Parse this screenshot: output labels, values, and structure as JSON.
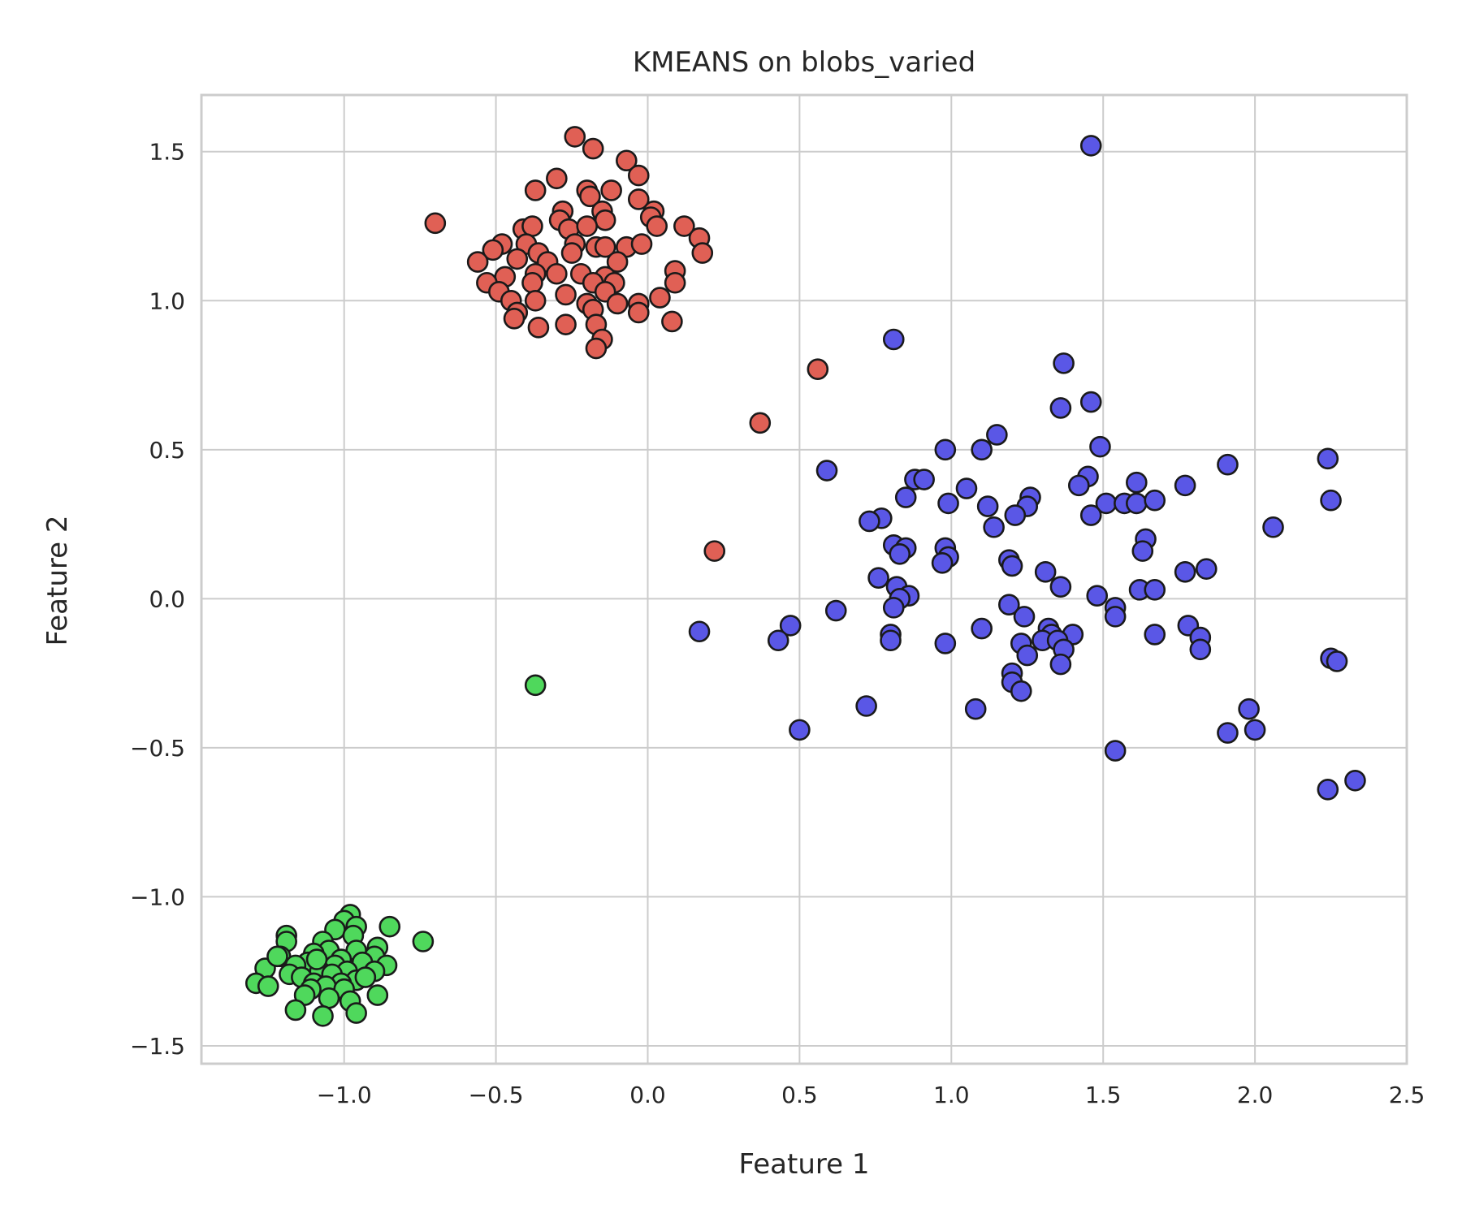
{
  "chart_data": {
    "type": "scatter",
    "title": "KMEANS on blobs_varied",
    "xlabel": "Feature 1",
    "ylabel": "Feature 2",
    "xlim": [
      -1.47,
      2.5
    ],
    "ylim": [
      -1.56,
      1.69
    ],
    "xticks": [
      -1.0,
      -0.5,
      0.0,
      0.5,
      1.0,
      1.5,
      2.0,
      2.5
    ],
    "xtick_labels": [
      "−1.0",
      "−0.5",
      "0.0",
      "0.5",
      "1.0",
      "1.5",
      "2.0",
      "2.5"
    ],
    "yticks": [
      -1.5,
      -1.0,
      -0.5,
      0.0,
      0.5,
      1.0,
      1.5
    ],
    "ytick_labels": [
      "−1.5",
      "−1.0",
      "−0.5",
      "0.0",
      "0.5",
      "1.0",
      "1.5"
    ],
    "grid": true,
    "series": [
      {
        "color": "#e06055",
        "points": [
          [
            -0.7,
            1.26
          ],
          [
            -0.24,
            1.55
          ],
          [
            -0.18,
            1.51
          ],
          [
            -0.07,
            1.47
          ],
          [
            -0.03,
            1.42
          ],
          [
            -0.3,
            1.41
          ],
          [
            -0.37,
            1.37
          ],
          [
            -0.2,
            1.37
          ],
          [
            -0.12,
            1.37
          ],
          [
            -0.19,
            1.35
          ],
          [
            -0.03,
            1.34
          ],
          [
            -0.28,
            1.3
          ],
          [
            -0.15,
            1.3
          ],
          [
            0.02,
            1.3
          ],
          [
            -0.29,
            1.27
          ],
          [
            -0.14,
            1.27
          ],
          [
            0.01,
            1.28
          ],
          [
            -0.41,
            1.24
          ],
          [
            -0.38,
            1.25
          ],
          [
            -0.26,
            1.24
          ],
          [
            -0.2,
            1.25
          ],
          [
            0.03,
            1.25
          ],
          [
            0.12,
            1.25
          ],
          [
            -0.48,
            1.19
          ],
          [
            -0.4,
            1.19
          ],
          [
            -0.24,
            1.19
          ],
          [
            -0.17,
            1.18
          ],
          [
            -0.14,
            1.18
          ],
          [
            -0.07,
            1.18
          ],
          [
            -0.02,
            1.19
          ],
          [
            0.17,
            1.21
          ],
          [
            -0.51,
            1.17
          ],
          [
            -0.36,
            1.16
          ],
          [
            -0.25,
            1.16
          ],
          [
            0.18,
            1.16
          ],
          [
            -0.56,
            1.13
          ],
          [
            -0.43,
            1.14
          ],
          [
            -0.33,
            1.13
          ],
          [
            -0.1,
            1.13
          ],
          [
            -0.47,
            1.08
          ],
          [
            -0.37,
            1.09
          ],
          [
            -0.3,
            1.09
          ],
          [
            -0.22,
            1.09
          ],
          [
            -0.14,
            1.08
          ],
          [
            0.09,
            1.1
          ],
          [
            -0.53,
            1.06
          ],
          [
            -0.38,
            1.06
          ],
          [
            -0.18,
            1.06
          ],
          [
            -0.11,
            1.06
          ],
          [
            0.09,
            1.06
          ],
          [
            -0.49,
            1.03
          ],
          [
            -0.27,
            1.02
          ],
          [
            -0.14,
            1.03
          ],
          [
            0.04,
            1.01
          ],
          [
            -0.45,
            1.0
          ],
          [
            -0.37,
            1.0
          ],
          [
            -0.2,
            0.99
          ],
          [
            -0.1,
            0.99
          ],
          [
            -0.03,
            0.99
          ],
          [
            -0.43,
            0.96
          ],
          [
            -0.18,
            0.97
          ],
          [
            -0.03,
            0.96
          ],
          [
            -0.44,
            0.94
          ],
          [
            -0.36,
            0.91
          ],
          [
            -0.27,
            0.92
          ],
          [
            -0.17,
            0.92
          ],
          [
            0.08,
            0.93
          ],
          [
            -0.15,
            0.87
          ],
          [
            -0.17,
            0.84
          ],
          [
            0.56,
            0.77
          ],
          [
            0.37,
            0.59
          ],
          [
            0.22,
            0.16
          ]
        ]
      },
      {
        "color": "#5a57e6",
        "points": [
          [
            1.46,
            1.52
          ],
          [
            0.81,
            0.87
          ],
          [
            1.37,
            0.79
          ],
          [
            1.46,
            0.66
          ],
          [
            1.36,
            0.64
          ],
          [
            1.15,
            0.55
          ],
          [
            1.49,
            0.51
          ],
          [
            0.98,
            0.5
          ],
          [
            1.1,
            0.5
          ],
          [
            0.59,
            0.43
          ],
          [
            1.91,
            0.45
          ],
          [
            2.24,
            0.47
          ],
          [
            0.88,
            0.4
          ],
          [
            0.91,
            0.4
          ],
          [
            1.45,
            0.41
          ],
          [
            1.05,
            0.37
          ],
          [
            1.42,
            0.38
          ],
          [
            1.61,
            0.39
          ],
          [
            1.77,
            0.38
          ],
          [
            0.85,
            0.34
          ],
          [
            1.26,
            0.34
          ],
          [
            0.99,
            0.32
          ],
          [
            1.51,
            0.32
          ],
          [
            1.57,
            0.32
          ],
          [
            1.61,
            0.32
          ],
          [
            1.67,
            0.33
          ],
          [
            2.25,
            0.33
          ],
          [
            1.12,
            0.31
          ],
          [
            1.25,
            0.31
          ],
          [
            1.46,
            0.28
          ],
          [
            0.77,
            0.27
          ],
          [
            1.21,
            0.28
          ],
          [
            0.73,
            0.26
          ],
          [
            1.14,
            0.24
          ],
          [
            2.06,
            0.24
          ],
          [
            1.64,
            0.2
          ],
          [
            0.81,
            0.18
          ],
          [
            0.85,
            0.17
          ],
          [
            0.98,
            0.17
          ],
          [
            1.63,
            0.16
          ],
          [
            0.83,
            0.15
          ],
          [
            0.99,
            0.14
          ],
          [
            1.19,
            0.13
          ],
          [
            0.97,
            0.12
          ],
          [
            1.2,
            0.11
          ],
          [
            1.31,
            0.09
          ],
          [
            1.77,
            0.09
          ],
          [
            1.84,
            0.1
          ],
          [
            0.76,
            0.07
          ],
          [
            0.82,
            0.04
          ],
          [
            1.36,
            0.04
          ],
          [
            1.62,
            0.03
          ],
          [
            1.67,
            0.03
          ],
          [
            0.86,
            0.01
          ],
          [
            1.48,
            0.01
          ],
          [
            0.83,
            0.0
          ],
          [
            1.19,
            -0.02
          ],
          [
            1.54,
            -0.03
          ],
          [
            0.81,
            -0.03
          ],
          [
            0.62,
            -0.04
          ],
          [
            1.24,
            -0.06
          ],
          [
            1.54,
            -0.06
          ],
          [
            0.47,
            -0.09
          ],
          [
            1.1,
            -0.1
          ],
          [
            1.32,
            -0.1
          ],
          [
            1.78,
            -0.09
          ],
          [
            0.17,
            -0.11
          ],
          [
            1.33,
            -0.12
          ],
          [
            1.4,
            -0.12
          ],
          [
            1.67,
            -0.12
          ],
          [
            0.8,
            -0.12
          ],
          [
            1.3,
            -0.14
          ],
          [
            0.8,
            -0.14
          ],
          [
            0.43,
            -0.14
          ],
          [
            1.82,
            -0.13
          ],
          [
            1.35,
            -0.14
          ],
          [
            1.23,
            -0.15
          ],
          [
            0.98,
            -0.15
          ],
          [
            1.37,
            -0.17
          ],
          [
            1.82,
            -0.17
          ],
          [
            1.25,
            -0.19
          ],
          [
            2.25,
            -0.2
          ],
          [
            2.27,
            -0.21
          ],
          [
            1.36,
            -0.22
          ],
          [
            1.2,
            -0.25
          ],
          [
            1.2,
            -0.28
          ],
          [
            1.23,
            -0.31
          ],
          [
            0.72,
            -0.36
          ],
          [
            1.08,
            -0.37
          ],
          [
            1.98,
            -0.37
          ],
          [
            0.5,
            -0.44
          ],
          [
            1.91,
            -0.45
          ],
          [
            2.0,
            -0.44
          ],
          [
            1.54,
            -0.51
          ],
          [
            2.33,
            -0.61
          ],
          [
            2.24,
            -0.64
          ]
        ]
      },
      {
        "color": "#4fd85c",
        "points": [
          [
            -0.37,
            -0.29
          ],
          [
            -0.74,
            -1.15
          ],
          [
            -0.85,
            -1.1
          ],
          [
            -0.98,
            -1.06
          ],
          [
            -1.0,
            -1.08
          ],
          [
            -0.96,
            -1.1
          ],
          [
            -1.03,
            -1.11
          ],
          [
            -0.97,
            -1.13
          ],
          [
            -1.19,
            -1.13
          ],
          [
            -1.19,
            -1.15
          ],
          [
            -1.07,
            -1.15
          ],
          [
            -0.89,
            -1.17
          ],
          [
            -1.05,
            -1.18
          ],
          [
            -0.96,
            -1.18
          ],
          [
            -1.1,
            -1.19
          ],
          [
            -1.21,
            -1.2
          ],
          [
            -0.9,
            -1.2
          ],
          [
            -1.01,
            -1.21
          ],
          [
            -0.94,
            -1.22
          ],
          [
            -1.12,
            -1.22
          ],
          [
            -1.16,
            -1.23
          ],
          [
            -1.03,
            -1.23
          ],
          [
            -0.86,
            -1.23
          ],
          [
            -1.26,
            -1.24
          ],
          [
            -0.99,
            -1.25
          ],
          [
            -1.08,
            -1.25
          ],
          [
            -0.9,
            -1.25
          ],
          [
            -1.18,
            -1.26
          ],
          [
            -1.04,
            -1.26
          ],
          [
            -1.14,
            -1.27
          ],
          [
            -0.96,
            -1.28
          ],
          [
            -1.29,
            -1.29
          ],
          [
            -1.1,
            -1.29
          ],
          [
            -1.01,
            -1.29
          ],
          [
            -1.25,
            -1.3
          ],
          [
            -1.06,
            -1.3
          ],
          [
            -1.11,
            -1.31
          ],
          [
            -1.0,
            -1.31
          ],
          [
            -1.13,
            -1.33
          ],
          [
            -0.89,
            -1.33
          ],
          [
            -1.05,
            -1.34
          ],
          [
            -0.98,
            -1.35
          ],
          [
            -1.16,
            -1.38
          ],
          [
            -0.96,
            -1.39
          ],
          [
            -1.07,
            -1.4
          ],
          [
            -1.22,
            -1.2
          ],
          [
            -1.09,
            -1.21
          ],
          [
            -0.93,
            -1.27
          ]
        ]
      }
    ]
  }
}
